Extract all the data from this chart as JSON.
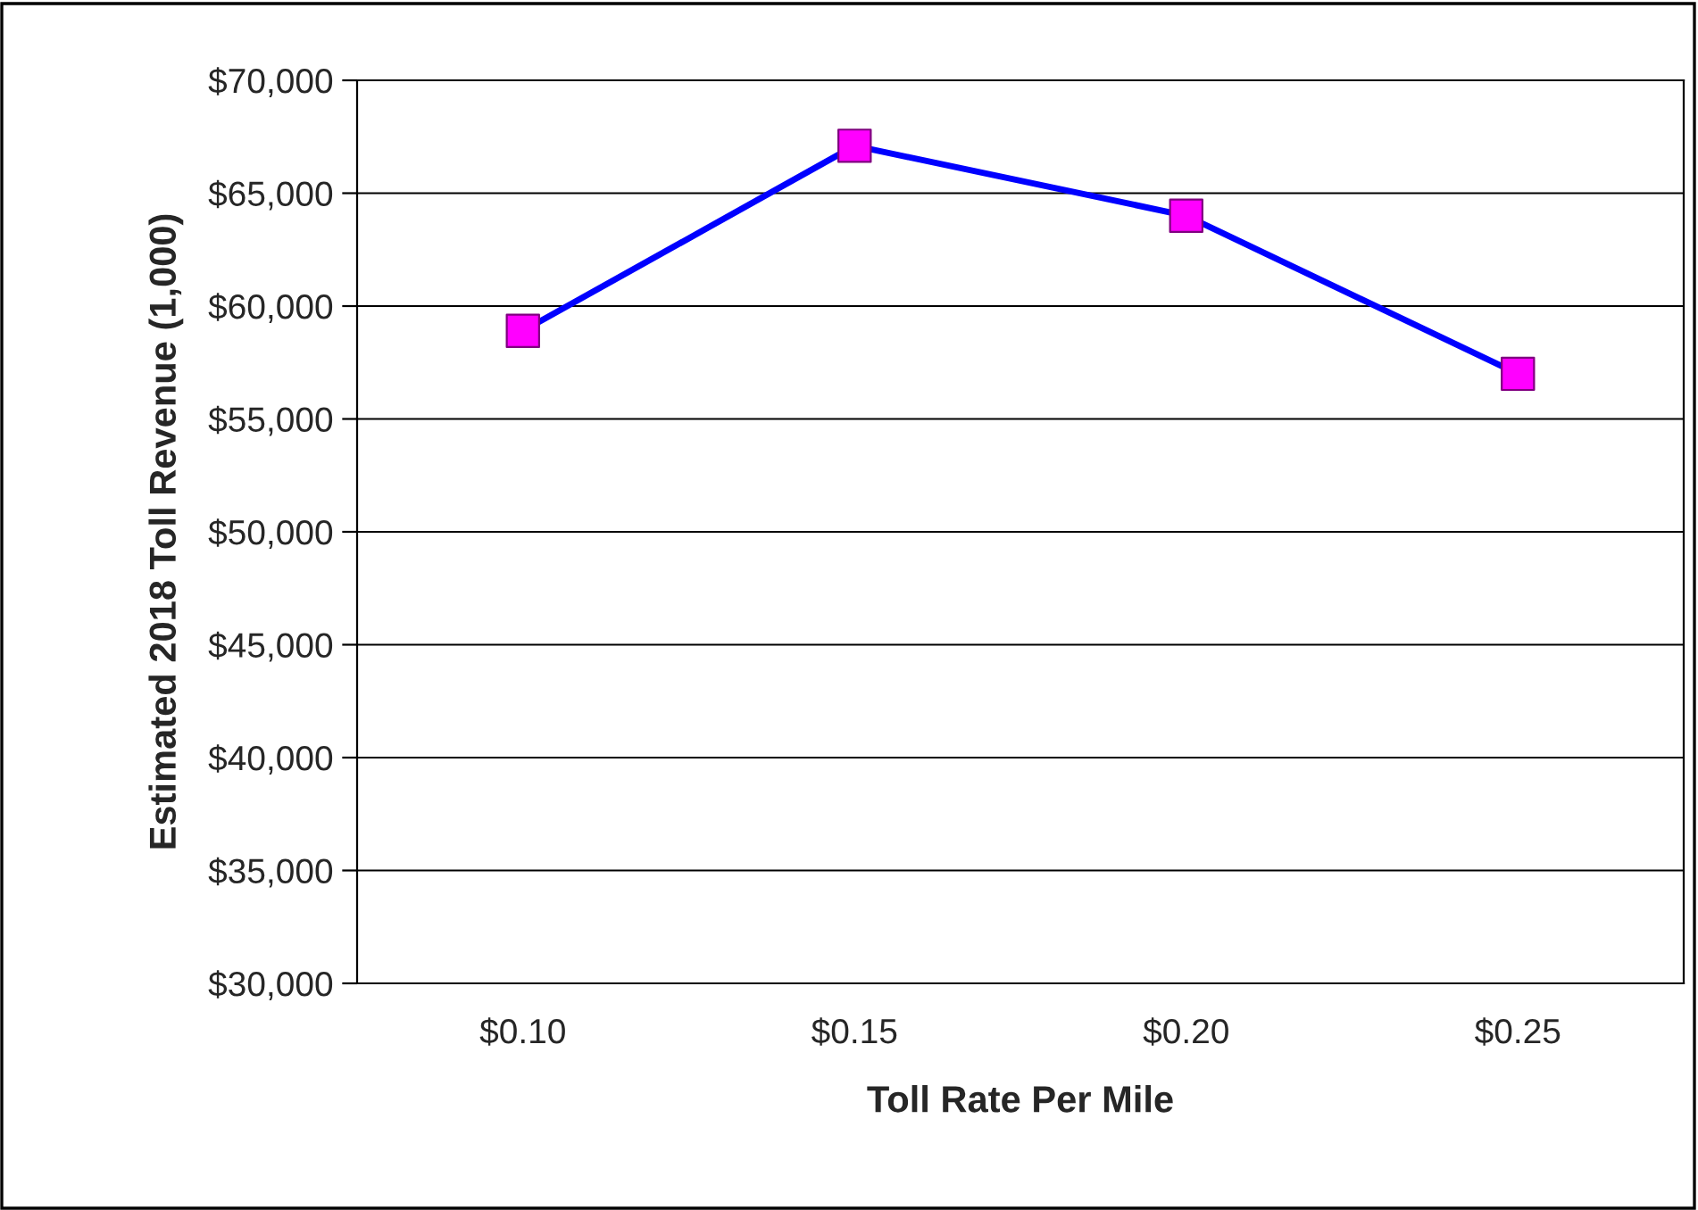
{
  "chart_data": {
    "type": "line",
    "xlabel": "Toll Rate Per Mile",
    "ylabel": "Estimated 2018 Toll Revenue (1,000)",
    "categories": [
      "$0.10",
      "$0.15",
      "$0.20",
      "$0.25"
    ],
    "series": [
      {
        "color": "#0000ff",
        "colors": [
          "#ff00ff",
          "#ff00ff",
          "#ff00ff",
          "#ff00ff"
        ],
        "values": [
          58900,
          67100,
          64000,
          57000
        ]
      }
    ],
    "marker": "square",
    "ylim": [
      30000,
      70000
    ],
    "yticks": [
      {
        "value": 30000,
        "label": "$30,000"
      },
      {
        "value": 35000,
        "label": "$35,000"
      },
      {
        "value": 40000,
        "label": "$40,000"
      },
      {
        "value": 45000,
        "label": "$45,000"
      },
      {
        "value": 50000,
        "label": "$50,000"
      },
      {
        "value": 55000,
        "label": "$55,000"
      },
      {
        "value": 60000,
        "label": "$60,000"
      },
      {
        "value": 65000,
        "label": "$65,000"
      },
      {
        "value": 70000,
        "label": "$70,000"
      }
    ],
    "grid": "y",
    "legend": false
  }
}
